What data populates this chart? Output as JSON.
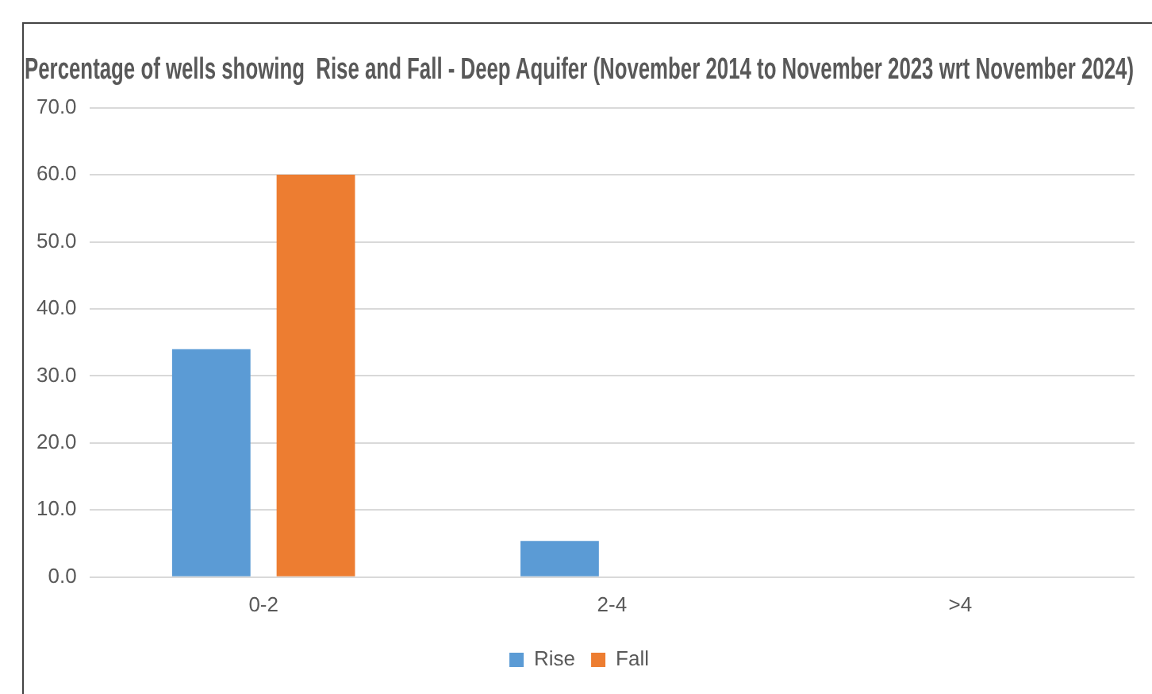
{
  "chart_data": {
    "type": "bar",
    "title": "Percentage of wells showing  Rise and Fall - Deep Aquifer (November 2014 to November 2023 wrt November 2024)",
    "categories": [
      "0-2",
      "2-4",
      ">4"
    ],
    "series": [
      {
        "name": "Rise",
        "color": "#5b9bd5",
        "values": [
          34.0,
          5.4,
          0
        ]
      },
      {
        "name": "Fall",
        "color": "#ed7d31",
        "values": [
          60.0,
          0,
          0
        ]
      }
    ],
    "ylim": [
      0,
      70
    ],
    "yticks": [
      {
        "value": 0,
        "label": "0.0"
      },
      {
        "value": 10,
        "label": "10.0"
      },
      {
        "value": 20,
        "label": "20.0"
      },
      {
        "value": 30,
        "label": "30.0"
      },
      {
        "value": 40,
        "label": "40.0"
      },
      {
        "value": 50,
        "label": "50.0"
      },
      {
        "value": 60,
        "label": "60.0"
      },
      {
        "value": 70,
        "label": "70.0"
      }
    ],
    "grid": "y",
    "legend": "bottom"
  }
}
